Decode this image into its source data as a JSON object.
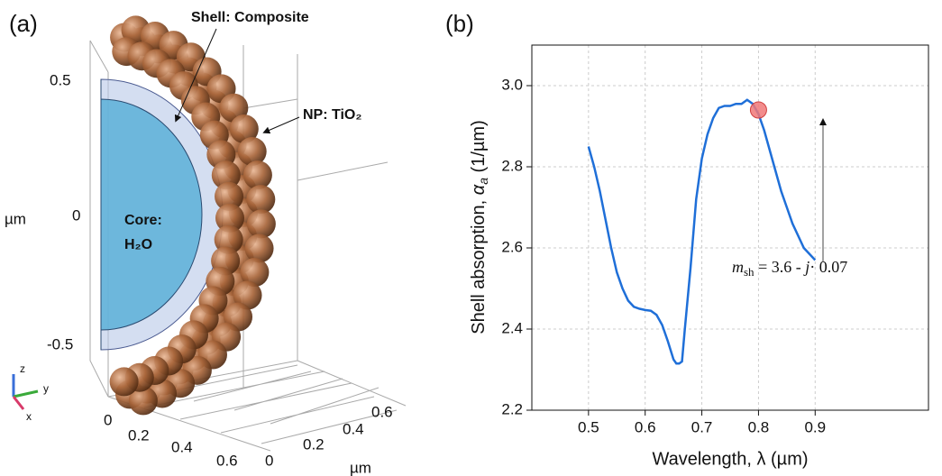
{
  "panel_labels": [
    "(a)",
    "(b)"
  ],
  "panel_a": {
    "z_ticks": [
      "0.5",
      "0",
      "-0.5"
    ],
    "z_unit": "µm",
    "x_ticks": [
      "0",
      "0.2",
      "0.4",
      "0.6"
    ],
    "y_ticks": [
      "0",
      "0.2",
      "0.4",
      "0.6"
    ],
    "y_unit": "µm",
    "annotations": {
      "shell": "Shell: Composite",
      "np": "NP: TiO₂",
      "core": [
        "Core:",
        "H₂O"
      ]
    },
    "triad": [
      "z",
      "y",
      "x"
    ]
  },
  "chart_data": {
    "type": "line",
    "x_label": "Wavelength, λ (µm)",
    "y_label": [
      "Shell absorption, ",
      "α",
      "a",
      " (1/µm)"
    ],
    "x": [
      0.5,
      0.51,
      0.52,
      0.53,
      0.54,
      0.55,
      0.56,
      0.57,
      0.58,
      0.59,
      0.6,
      0.61,
      0.62,
      0.63,
      0.64,
      0.65,
      0.655,
      0.66,
      0.665,
      0.67,
      0.68,
      0.69,
      0.7,
      0.71,
      0.72,
      0.73,
      0.74,
      0.75,
      0.76,
      0.77,
      0.78,
      0.79,
      0.8,
      0.81,
      0.82,
      0.83,
      0.84,
      0.85,
      0.86,
      0.87,
      0.88,
      0.89,
      0.9
    ],
    "series": [
      {
        "color": "#1f6fd8",
        "values": [
          2.85,
          2.8,
          2.74,
          2.67,
          2.6,
          2.54,
          2.5,
          2.47,
          2.455,
          2.45,
          2.447,
          2.445,
          2.435,
          2.41,
          2.37,
          2.325,
          2.315,
          2.315,
          2.32,
          2.4,
          2.55,
          2.72,
          2.82,
          2.88,
          2.92,
          2.945,
          2.95,
          2.95,
          2.955,
          2.955,
          2.965,
          2.955,
          2.93,
          2.89,
          2.84,
          2.79,
          2.74,
          2.7,
          2.66,
          2.63,
          2.6,
          2.585,
          2.57
        ]
      }
    ],
    "marker": {
      "x": 0.8,
      "y": 2.94,
      "color": "#f07878"
    },
    "annotation": [
      "m",
      "sh",
      " = 3.6 - ",
      "j",
      "· 0.07"
    ],
    "xlim": [
      0.4,
      1.1
    ],
    "xticks": [
      0.5,
      0.6,
      0.7,
      0.8,
      0.9
    ],
    "ylim": [
      2.2,
      3.1
    ],
    "yticks": [
      2.2,
      2.4,
      2.6,
      2.8,
      {
        "value": 3.0,
        "label": "3.0"
      }
    ],
    "grid": true
  }
}
